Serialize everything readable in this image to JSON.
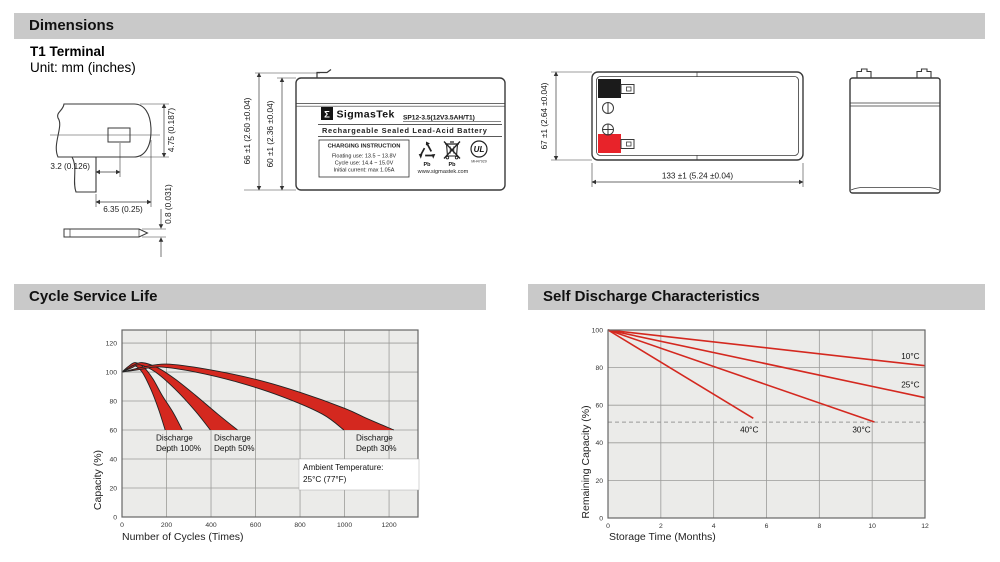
{
  "page": {
    "sections": {
      "dimensions": "Dimensions"
    },
    "terminal_heading": "T1 Terminal",
    "unit_note": "Unit: mm (inches)"
  },
  "terminal_detail": {
    "dim_offset": "3.2 (0.126)",
    "dim_width": "6.35 (0.25)",
    "dim_height": "4.75 (0.187)",
    "dim_thickness": "0.8 (0.031)"
  },
  "front_view": {
    "dim_outer_height": "66 ±1 (2.60 ±0.04)",
    "dim_inner_height": "60 ±1 (2.36 ±0.04)",
    "label": {
      "brand_symbol": "Σ",
      "brand": "SigmasTek",
      "model": "SP12-3.5(12V3.5AH/T1)",
      "subtitle": "Rechargeable Sealed Lead-Acid Battery",
      "charging_title": "CHARGING INSTRUCTION",
      "charging_lines": [
        "Floating use: 13.5 ~ 13.8V",
        "Cycle use: 14.4 ~ 15.0V",
        "Initial current: max 1.05A"
      ],
      "pb_label": "Pb",
      "ul_text": "UL",
      "ul_code": "MH47929",
      "website": "www.sigmastek.com"
    }
  },
  "top_view": {
    "dim_height": "67 ±1 (2.64 ±0.04)",
    "dim_width": "133 ±1 (5.24 ±0.04)"
  },
  "colors": {
    "band_red": "#d4281f",
    "terminal_red": "#e8232a",
    "chart_bg": "#ebebe9",
    "grid": "#9b9b99",
    "header_gray": "#c9c9c9"
  },
  "chart_data": [
    {
      "type": "area",
      "title": "Cycle Service Life",
      "xlabel": "Number of Cycles (Times)",
      "ylabel": "Capacity (%)",
      "xlim": [
        0,
        1330
      ],
      "ylim": [
        0,
        129
      ],
      "xticks": [
        0,
        200,
        400,
        600,
        800,
        1000,
        1200
      ],
      "yticks": [
        0,
        20,
        40,
        60,
        80,
        100,
        120
      ],
      "grid": true,
      "note_lines": [
        "Ambient Temperature:",
        "25°C (77°F)"
      ],
      "series": [
        {
          "name": "Discharge Depth 100%",
          "label_lines": [
            "Discharge",
            "Depth 100%"
          ],
          "upper": [
            [
              0,
              100
            ],
            [
              30,
              104
            ],
            [
              60,
              106.5
            ],
            [
              100,
              103
            ],
            [
              140,
              95
            ],
            [
              180,
              84
            ],
            [
              230,
              72
            ],
            [
              271,
              60
            ]
          ],
          "lower": [
            [
              0,
              100
            ],
            [
              30,
              102.5
            ],
            [
              55,
              104.5
            ],
            [
              90,
              100
            ],
            [
              130,
              88
            ],
            [
              165,
              74
            ],
            [
              194,
              60
            ]
          ]
        },
        {
          "name": "Discharge Depth 50%",
          "label_lines": [
            "Discharge",
            "Depth 50%"
          ],
          "upper": [
            [
              0,
              100
            ],
            [
              50,
              104.5
            ],
            [
              90,
              106.5
            ],
            [
              160,
              103
            ],
            [
              240,
              95
            ],
            [
              330,
              84
            ],
            [
              430,
              71
            ],
            [
              519,
              60
            ]
          ],
          "lower": [
            [
              0,
              100
            ],
            [
              45,
              103
            ],
            [
              80,
              105
            ],
            [
              150,
              100
            ],
            [
              240,
              88
            ],
            [
              330,
              73
            ],
            [
              397,
              60
            ]
          ]
        },
        {
          "name": "Discharge Depth 30%",
          "label_lines": [
            "Discharge",
            "Depth 30%"
          ],
          "upper": [
            [
              0,
              100
            ],
            [
              100,
              103.5
            ],
            [
              200,
              105.5
            ],
            [
              380,
              102
            ],
            [
              600,
              95
            ],
            [
              800,
              86
            ],
            [
              1000,
              75
            ],
            [
              1100,
              68
            ],
            [
              1222,
              60
            ]
          ],
          "lower": [
            [
              0,
              100
            ],
            [
              90,
              102
            ],
            [
              170,
              103.5
            ],
            [
              330,
              100
            ],
            [
              520,
              93
            ],
            [
              720,
              83
            ],
            [
              900,
              71
            ],
            [
              997,
              60
            ]
          ]
        }
      ]
    },
    {
      "type": "line",
      "title": "Self Discharge Characteristics",
      "xlabel": "Storage Time (Months)",
      "ylabel": "Remaining Capacity (%)",
      "xlim": [
        0,
        12
      ],
      "ylim": [
        0,
        100
      ],
      "xticks": [
        0,
        2,
        4,
        6,
        8,
        10,
        12
      ],
      "yticks": [
        0,
        20,
        40,
        60,
        80,
        100
      ],
      "grid": true,
      "dashed_line_y": 51,
      "series": [
        {
          "name": "10°C",
          "points": [
            [
              0,
              100
            ],
            [
              12,
              81
            ]
          ],
          "label_pos": [
            11.1,
            84.5
          ]
        },
        {
          "name": "25°C",
          "points": [
            [
              0,
              100
            ],
            [
              12,
              64
            ]
          ],
          "label_pos": [
            11.1,
            69.5
          ]
        },
        {
          "name": "30°C",
          "points": [
            [
              0,
              100
            ],
            [
              10.1,
              51
            ]
          ],
          "label_pos": [
            9.25,
            45.5
          ]
        },
        {
          "name": "40°C",
          "points": [
            [
              0,
              100
            ],
            [
              5.5,
              53
            ]
          ],
          "label_pos": [
            5.0,
            45.5
          ]
        }
      ]
    }
  ]
}
